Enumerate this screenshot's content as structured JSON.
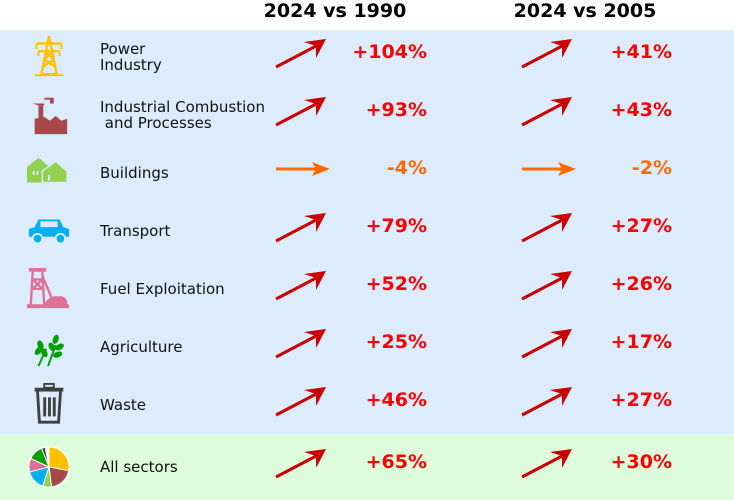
{
  "headers": [
    "2024 vs 1990",
    "2024 vs 2005"
  ],
  "colors": {
    "increase": "#ff0000",
    "increase_arrow": "#cc0000",
    "stable": "#ff6a00",
    "sector_bg": "#dcecfc",
    "total_bg": "#dcfcdc"
  },
  "rows": [
    {
      "label": "Power\nIndustry",
      "icon": "power-pylon-icon",
      "icon_color": "#ffc000",
      "v1990": "+104%",
      "v2005": "+41%",
      "trend1990": "up",
      "trend2005": "up"
    },
    {
      "label": "Industrial Combustion\n and Processes",
      "icon": "factory-icon",
      "icon_color": "#a84848",
      "v1990": "+93%",
      "v2005": "+43%",
      "trend1990": "up",
      "trend2005": "up"
    },
    {
      "label": "Buildings",
      "icon": "houses-icon",
      "icon_color": "#92d050",
      "v1990": "-4%",
      "v2005": "-2%",
      "trend1990": "flat",
      "trend2005": "flat"
    },
    {
      "label": "Transport",
      "icon": "car-icon",
      "icon_color": "#00b0f0",
      "v1990": "+79%",
      "v2005": "+27%",
      "trend1990": "up",
      "trend2005": "up"
    },
    {
      "label": "Fuel Exploitation",
      "icon": "mine-tower-icon",
      "icon_color": "#e07098",
      "v1990": "+52%",
      "v2005": "+26%",
      "trend1990": "up",
      "trend2005": "up"
    },
    {
      "label": "Agriculture",
      "icon": "wheat-icon",
      "icon_color": "#00a000",
      "v1990": "+25%",
      "v2005": "+17%",
      "trend1990": "up",
      "trend2005": "up"
    },
    {
      "label": "Waste",
      "icon": "trash-bin-icon",
      "icon_color": "#404040",
      "v1990": "+46%",
      "v2005": "+27%",
      "trend1990": "up",
      "trend2005": "up"
    },
    {
      "label": "All sectors",
      "icon": "pie-chart-icon",
      "icon_color": "#ffc000",
      "v1990": "+65%",
      "v2005": "+30%",
      "trend1990": "up",
      "trend2005": "up"
    }
  ]
}
